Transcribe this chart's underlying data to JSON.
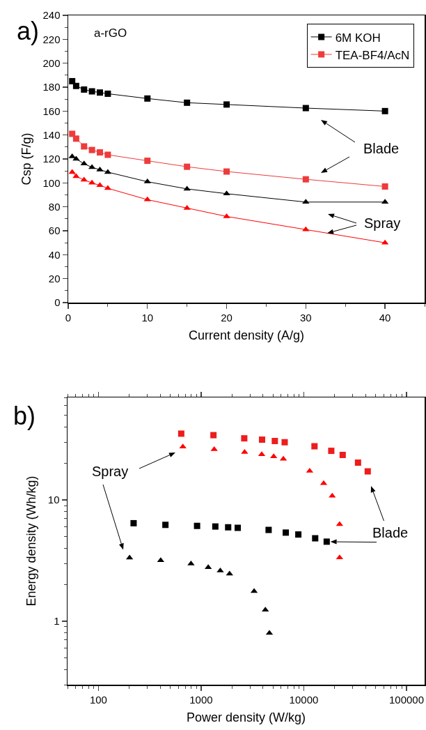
{
  "chart_data": [
    {
      "type": "line",
      "xlabel": "Current density (A/g)",
      "ylabel": "Csp (F/g)",
      "x": [
        0.5,
        1,
        2,
        3,
        4,
        5,
        10,
        15,
        20,
        30,
        40
      ],
      "xlim": [
        0,
        45
      ],
      "xticks": [
        0,
        10,
        20,
        30,
        40
      ],
      "ylim": [
        0,
        240
      ],
      "yticks": [
        0,
        20,
        40,
        60,
        80,
        100,
        120,
        140,
        160,
        180,
        200,
        220,
        240
      ],
      "legend": "top right",
      "line_style": "solid",
      "annotations": [
        "a)",
        "a-rGO",
        "Blade",
        {
          "text": "Spray",
          "x": 32.7,
          "y": 58
        }
      ],
      "series": [
        {
          "name": "6M KOH",
          "color": "#000000",
          "marker": "square",
          "values": [
            185,
            181,
            178,
            176.5,
            175.5,
            174.5,
            170.5,
            167,
            165.5,
            162.5,
            160
          ]
        },
        {
          "name": "TEA-BF4/AcN",
          "color": "#ee3b3b",
          "marker": "square",
          "values": [
            141,
            137,
            130.5,
            127.5,
            125.5,
            123.5,
            118.5,
            113.5,
            109.5,
            103,
            97
          ]
        },
        {
          "color": "#000000",
          "marker": "triangle",
          "values": [
            122,
            120,
            116,
            113,
            111,
            109,
            101,
            95,
            91,
            84,
            84
          ]
        },
        {
          "color": "#ff0000",
          "marker": "triangle",
          "values": [
            109,
            105.5,
            102.5,
            100,
            98,
            95.5,
            86,
            79,
            72,
            61,
            50
          ]
        }
      ]
    },
    {
      "type": "scatter",
      "xlabel": "Power density (W/kg)",
      "ylabel": "Energy density (Wh/kg)",
      "log": "xy",
      "xlim": [
        50,
        150000
      ],
      "xticks": [
        100,
        1000,
        10000,
        100000
      ],
      "ylim": [
        0.3,
        70
      ],
      "yticks": [
        1,
        10
      ],
      "legend": false,
      "annotations": [
        "b)",
        "Spray",
        "Blade"
      ],
      "series": [
        {
          "color": "#ee1c1c",
          "marker": "square",
          "x": [
            640,
            1318,
            2630,
            3920,
            5220,
            6510,
            12700,
            18500,
            23900,
            33700,
            41900
          ],
          "values": [
            35.2,
            34.2,
            32.2,
            31.4,
            30.6,
            29.9,
            27.7,
            25.4,
            23.5,
            20.3,
            17.2
          ]
        },
        {
          "color": "#ff0000",
          "marker": "triangle",
          "x": [
            664,
            1340,
            2650,
            3890,
            5090,
            6320,
            11400,
            15600,
            18900,
            22300,
            22300
          ],
          "values": [
            27.4,
            26.1,
            24.8,
            23.7,
            22.8,
            21.8,
            17.3,
            13.7,
            10.8,
            6.3,
            3.35
          ]
        },
        {
          "color": "#000000",
          "marker": "square",
          "x": [
            220,
            449,
            913,
            1375,
            1833,
            2270,
            4540,
            6670,
            8840,
            12900,
            16700
          ],
          "values": [
            6.43,
            6.23,
            6.11,
            6.04,
            5.95,
            5.89,
            5.66,
            5.38,
            5.19,
            4.83,
            4.53
          ]
        },
        {
          "color": "#000000",
          "marker": "triangle",
          "x": [
            201,
            404,
            797,
            1173,
            1536,
            1892,
            3280,
            4220,
            4620
          ],
          "values": [
            3.34,
            3.17,
            2.98,
            2.78,
            2.61,
            2.46,
            1.77,
            1.24,
            0.8
          ]
        }
      ]
    }
  ]
}
